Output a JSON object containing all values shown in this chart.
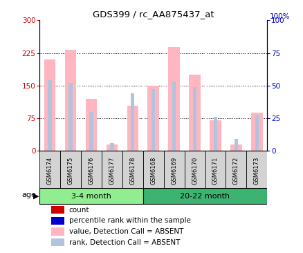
{
  "title": "GDS399 / rc_AA875437_at",
  "samples": [
    "GSM6174",
    "GSM6175",
    "GSM6176",
    "GSM6177",
    "GSM6178",
    "GSM6168",
    "GSM6169",
    "GSM6170",
    "GSM6171",
    "GSM6172",
    "GSM6173"
  ],
  "values": [
    210,
    232,
    120,
    15,
    103,
    150,
    238,
    175,
    70,
    15,
    88
  ],
  "ranks": [
    54,
    52,
    30,
    6,
    44,
    47,
    53,
    49,
    26,
    9,
    27
  ],
  "groups": [
    {
      "label": "3-4 month",
      "start": 0,
      "end": 5,
      "color": "#90EE90"
    },
    {
      "label": "20-22 month",
      "start": 5,
      "end": 11,
      "color": "#3CB371"
    }
  ],
  "ylim_left": [
    0,
    300
  ],
  "ylim_right": [
    0,
    100
  ],
  "yticks_left": [
    0,
    75,
    150,
    225,
    300
  ],
  "yticks_right": [
    0,
    25,
    50,
    75,
    100
  ],
  "value_bar_color": "#FFB6C1",
  "rank_bar_color": "#B0C4DE",
  "sample_box_color": "#D3D3D3",
  "legend_items": [
    {
      "label": "count",
      "color": "#CC0000"
    },
    {
      "label": "percentile rank within the sample",
      "color": "#0000CC"
    },
    {
      "label": "value, Detection Call = ABSENT",
      "color": "#FFB6C1"
    },
    {
      "label": "rank, Detection Call = ABSENT",
      "color": "#B0C4DE"
    }
  ],
  "age_label": "age",
  "left_tick_color": "#CC0000",
  "right_tick_color": "#0000CC",
  "gridline_ticks": [
    75,
    150,
    225
  ]
}
